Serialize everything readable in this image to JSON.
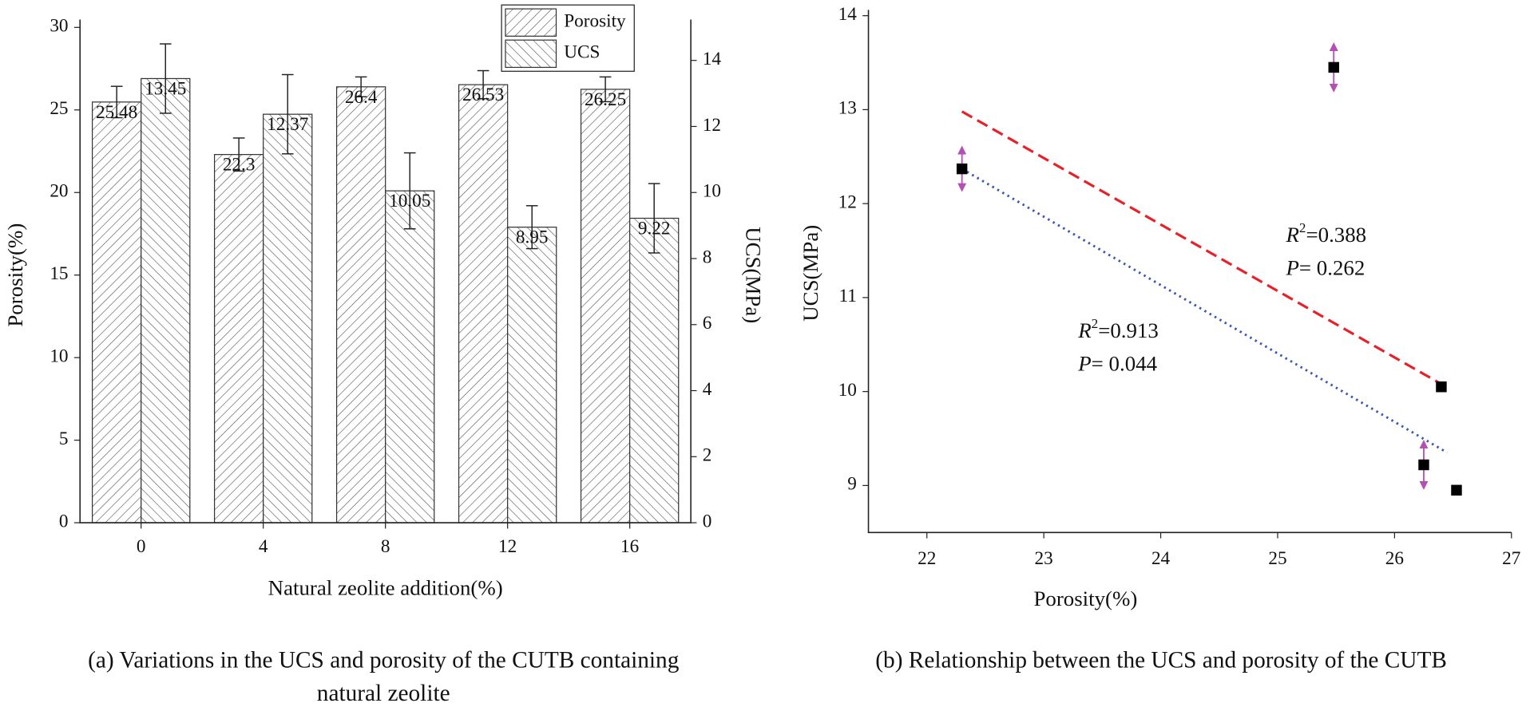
{
  "chart_data": [
    {
      "type": "bar",
      "categories": [
        "0",
        "4",
        "8",
        "12",
        "16"
      ],
      "series": [
        {
          "name": "Porosity",
          "pattern": "hatch-right",
          "color": "#333333",
          "values": [
            25.48,
            22.3,
            26.4,
            26.53,
            26.25
          ],
          "errors": [
            0.95,
            1.0,
            0.6,
            0.85,
            0.75
          ]
        },
        {
          "name": "UCS",
          "axis": "y2",
          "pattern": "hatch-left",
          "color": "#333333",
          "values": [
            13.45,
            12.37,
            10.05,
            8.95,
            9.22
          ],
          "errors": [
            1.05,
            1.2,
            1.15,
            0.65,
            1.05
          ]
        }
      ],
      "ylim": [
        0,
        30
      ],
      "yticks": [
        0,
        5,
        10,
        15,
        20,
        25,
        30
      ],
      "y2lim": [
        0,
        15
      ],
      "y2ticks": [
        0,
        2,
        4,
        6,
        8,
        10,
        12,
        14
      ],
      "xlabel": "Natural zeolite addition(%)",
      "ylabel": "Porosity(%)",
      "y2label": "UCS(MPa)",
      "legend": "top",
      "caption": [
        "(a) Variations in the UCS and porosity of the CUTB containing",
        "natural zeolite"
      ]
    },
    {
      "type": "scatter",
      "x": [
        25.48,
        22.3,
        26.4,
        26.53,
        26.25
      ],
      "y": [
        13.45,
        12.37,
        10.05,
        8.95,
        9.22
      ],
      "errors": [
        0.22,
        0.2,
        null,
        null,
        0.22
      ],
      "color": "#000000",
      "error_color": "#b44fb4",
      "xlim": [
        21.5,
        27
      ],
      "xticks": [
        22,
        23,
        24,
        25,
        26,
        27
      ],
      "ylim": [
        8.5,
        14
      ],
      "yticks": [
        9,
        10,
        11,
        12,
        13,
        14
      ],
      "xlabel": "Porosity(%)",
      "ylabel": "UCS(MPa)",
      "trendlines": [
        {
          "color": "#e8202a",
          "style": "dashed",
          "x": [
            22.3,
            26.4
          ],
          "y": [
            12.98,
            10.08
          ],
          "r_label": "R",
          "r_sup": "2",
          "r_value": "=0.388",
          "p_label": "P",
          "p_value": "= 0.262"
        },
        {
          "color": "#3a56b0",
          "style": "dotted",
          "x": [
            22.3,
            26.45
          ],
          "y": [
            12.37,
            9.35
          ],
          "r_label": "R",
          "r_sup": "2",
          "r_value": "=0.913",
          "p_label": "P",
          "p_value": "= 0.044"
        }
      ],
      "caption": [
        "(b) Relationship between the UCS and porosity of the CUTB"
      ]
    }
  ]
}
